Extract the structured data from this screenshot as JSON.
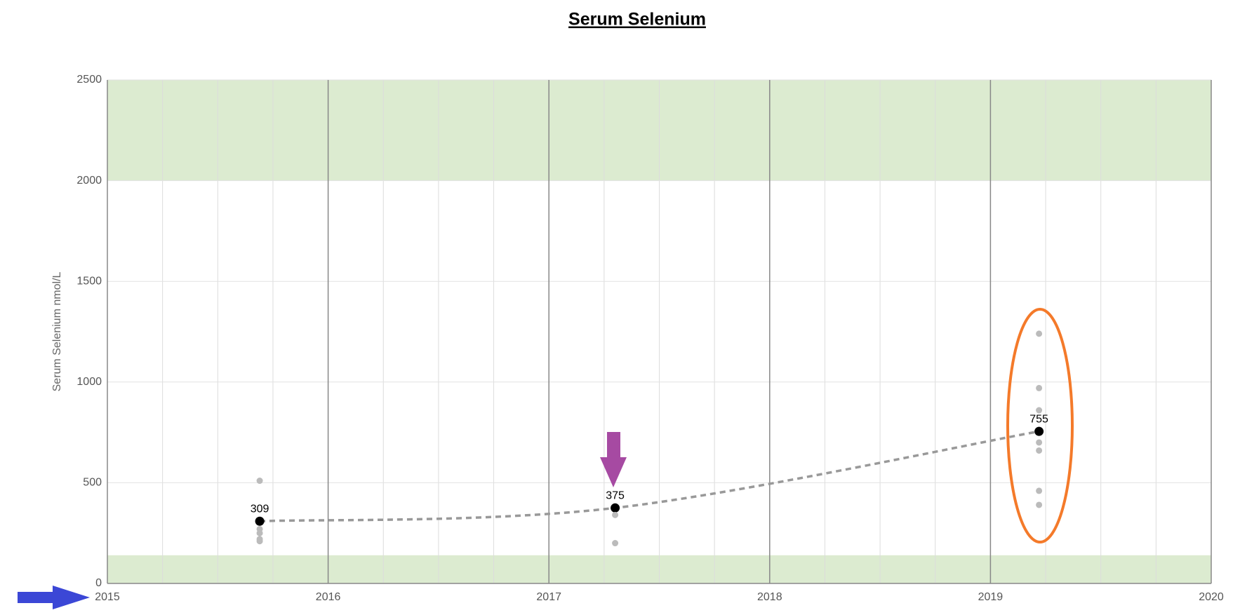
{
  "chart_data": {
    "type": "scatter",
    "title": "Serum Selenium",
    "y_label": "Serum Selenium nmol/L",
    "xlim": [
      2015,
      2020
    ],
    "xticks": [
      2015,
      2016,
      2017,
      2018,
      2019,
      2020
    ],
    "ylim": [
      0,
      2500
    ],
    "yticks": [
      0,
      500,
      1000,
      1500,
      2000,
      2500
    ],
    "grid": true,
    "ranges": [
      [
        2000,
        2500
      ],
      [
        0,
        140
      ]
    ],
    "range_color": "#dcebd0",
    "series": [
      {
        "color": "#000000",
        "x": [
          2015.69,
          2017.3,
          2019.22
        ],
        "values": [
          309,
          375,
          755
        ],
        "line_color": "#999999"
      },
      {
        "color": "#bbbbbb",
        "x": [
          2015.69,
          2015.69,
          2015.69,
          2015.69,
          2015.69,
          2017.3,
          2017.3,
          2019.22,
          2019.22,
          2019.22,
          2019.22,
          2019.22,
          2019.22,
          2019.22
        ],
        "values": [
          510,
          270,
          250,
          220,
          210,
          340,
          200,
          1240,
          970,
          860,
          700,
          660,
          460,
          390
        ]
      }
    ]
  }
}
